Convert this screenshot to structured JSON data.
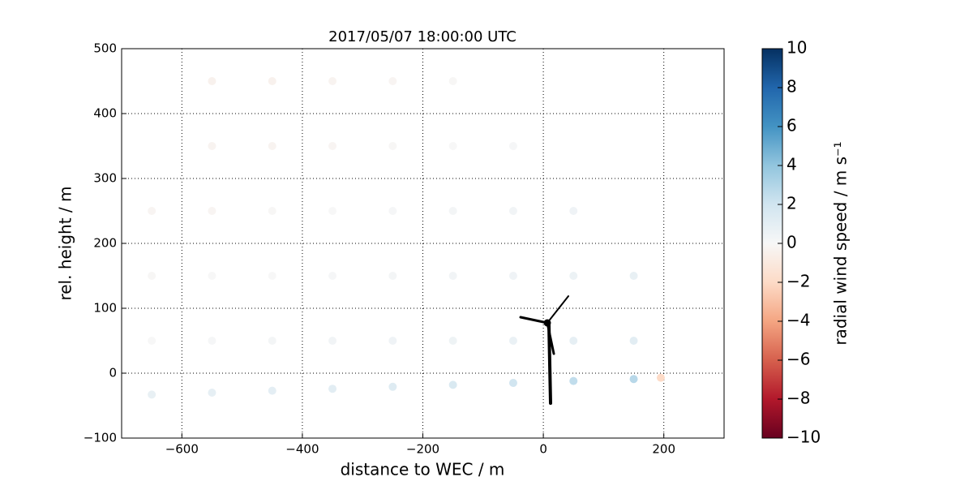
{
  "chart_data": {
    "type": "scatter",
    "title": "2017/05/07 18:00:00 UTC",
    "x_label": "distance to WEC / m",
    "y_label": "rel. height / m",
    "colorbar_label": "radial wind speed / m s⁻¹",
    "xlim": [
      -700,
      300
    ],
    "ylim": [
      -100,
      500
    ],
    "xticks": [
      {
        "value": -600,
        "label": "−600"
      },
      {
        "value": -400,
        "label": "−400"
      },
      {
        "value": -200,
        "label": "−200"
      },
      0,
      200
    ],
    "yticks": [
      {
        "value": -100,
        "label": "−100"
      },
      0,
      100,
      200,
      300,
      400,
      500
    ],
    "clim": [
      -10,
      10
    ],
    "cticks": [
      {
        "value": -10,
        "label": "−10"
      },
      {
        "value": -8,
        "label": "−8"
      },
      {
        "value": -6,
        "label": "−6"
      },
      {
        "value": -4,
        "label": "−4"
      },
      {
        "value": -2,
        "label": "−2"
      },
      0,
      2,
      4,
      6,
      8,
      10
    ],
    "colormap": [
      "#67001f",
      "#b2182b",
      "#d6604d",
      "#f4a582",
      "#fddbc7",
      "#f7f7f7",
      "#d1e5f0",
      "#92c5de",
      "#4393c3",
      "#2166ac",
      "#053061"
    ],
    "grid": true,
    "x": [
      -550,
      -450,
      -350,
      -250,
      -150,
      -550,
      -450,
      -350,
      -250,
      -150,
      -50,
      -650,
      -550,
      -450,
      -350,
      -250,
      -150,
      -50,
      50,
      -650,
      -550,
      -450,
      -350,
      -250,
      -150,
      -50,
      50,
      150,
      -650,
      -550,
      -450,
      -350,
      -250,
      -150,
      -50,
      50,
      150,
      -650,
      -550,
      -450,
      -350,
      -250,
      -150,
      -50,
      50,
      150,
      195
    ],
    "y": [
      450,
      450,
      450,
      450,
      450,
      350,
      350,
      350,
      350,
      350,
      350,
      250,
      250,
      250,
      250,
      250,
      250,
      250,
      250,
      150,
      150,
      150,
      150,
      150,
      150,
      150,
      150,
      150,
      50,
      50,
      50,
      50,
      50,
      50,
      50,
      50,
      50,
      -33,
      -30,
      -27,
      -24,
      -21,
      -18,
      -15,
      -12,
      -9,
      -7
    ],
    "values": [
      -0.4,
      -0.4,
      -0.3,
      -0.2,
      -0.1,
      -0.3,
      -0.3,
      -0.2,
      -0.1,
      0,
      0.1,
      -0.2,
      -0.2,
      -0.1,
      0,
      0.1,
      0.2,
      0.3,
      0.4,
      -0.1,
      0,
      0,
      0.1,
      0.2,
      0.3,
      0.4,
      0.6,
      0.8,
      0,
      0.1,
      0.2,
      0.3,
      0.4,
      0.5,
      0.7,
      0.9,
      1.1,
      0.8,
      0.9,
      1,
      1.1,
      1.3,
      1.6,
      2,
      2.5,
      2.8,
      -2
    ]
  }
}
